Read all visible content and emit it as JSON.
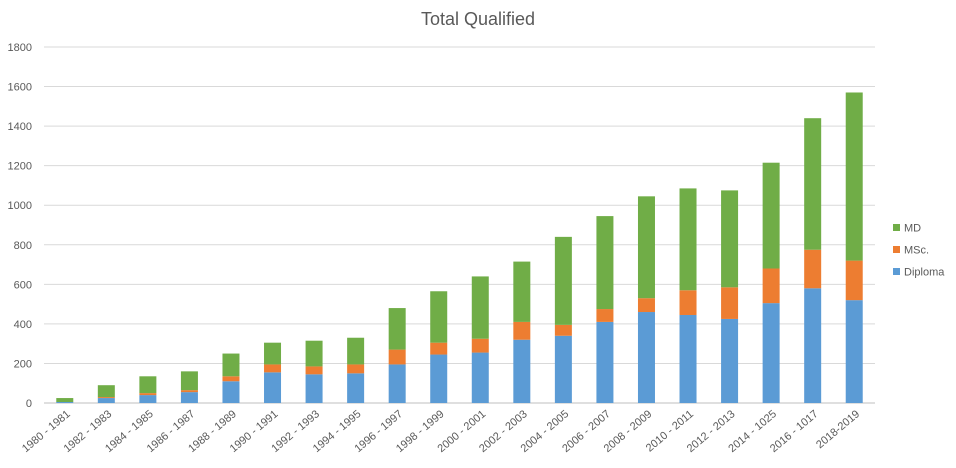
{
  "chart_data": {
    "type": "bar",
    "stacked": true,
    "title": "Total Qualified",
    "xlabel": "",
    "ylabel": "",
    "ylim": [
      0,
      1800
    ],
    "yticks": [
      0,
      200,
      400,
      600,
      800,
      1000,
      1200,
      1400,
      1600,
      1800
    ],
    "grid": true,
    "legend_position": "right",
    "categories": [
      "1980 - 1981",
      "1982 - 1983",
      "1984 - 1985",
      "1986 - 1987",
      "1988 - 1989",
      "1990 - 1991",
      "1992 - 1993",
      "1994 - 1995",
      "1996 - 1997",
      "1998 - 1999",
      "2000 - 2001",
      "2002 - 2003",
      "2004 - 2005",
      "2006 - 2007",
      "2008 - 2009",
      "2010 - 2011",
      "2012 - 2013",
      "2014 - 1025",
      "2016 - 1017",
      "2018-2019"
    ],
    "series": [
      {
        "name": "Diploma",
        "color": "#5B9BD5",
        "values": [
          5,
          25,
          40,
          55,
          110,
          155,
          145,
          150,
          195,
          245,
          255,
          320,
          340,
          410,
          460,
          445,
          425,
          505,
          580,
          520
        ]
      },
      {
        "name": "MSc.",
        "color": "#ED7D31",
        "values": [
          0,
          5,
          10,
          10,
          25,
          40,
          40,
          45,
          75,
          60,
          70,
          90,
          55,
          65,
          70,
          125,
          160,
          175,
          195,
          200
        ]
      },
      {
        "name": "MD",
        "color": "#70AD47",
        "values": [
          20,
          60,
          85,
          95,
          115,
          110,
          130,
          135,
          210,
          260,
          315,
          305,
          445,
          470,
          515,
          515,
          490,
          535,
          665,
          850
        ]
      }
    ]
  }
}
